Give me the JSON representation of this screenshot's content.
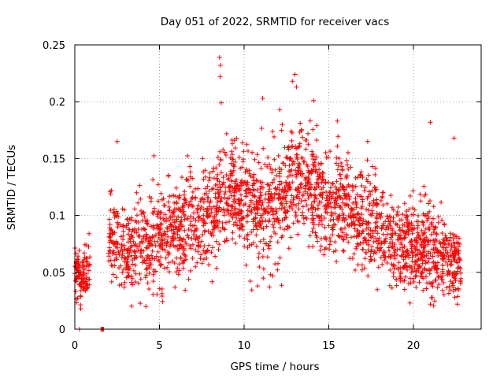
{
  "chart_data": {
    "type": "scatter",
    "title": "Day 051 of 2022, SRMTID for receiver vacs",
    "xlabel": "GPS time / hours",
    "ylabel": "SRMTID / TECUs",
    "xlim": [
      0,
      24
    ],
    "ylim": [
      0,
      0.25
    ],
    "x_ticks": [
      0,
      5,
      10,
      15,
      20
    ],
    "x_tick_labels": [
      "0",
      "5",
      "10",
      "15",
      "20"
    ],
    "y_ticks": [
      0,
      0.05,
      0.1,
      0.15,
      0.2,
      0.25
    ],
    "y_tick_labels": [
      "0",
      "0.05",
      "0.1",
      "0.15",
      "0.2",
      "0.25"
    ],
    "grid": true,
    "marker": "plus",
    "series_color": "#ff0000",
    "envelope": {
      "description": "approximate trend of point cloud (hours, TECU mean, TECU spread)",
      "hours": [
        0.0,
        1.0,
        2.0,
        3.0,
        4.0,
        5.0,
        6.0,
        7.0,
        8.0,
        9.0,
        10.0,
        11.0,
        12.0,
        13.0,
        14.0,
        15.0,
        16.0,
        17.0,
        18.0,
        19.0,
        20.0,
        21.0,
        22.0,
        22.8
      ],
      "mean": [
        0.05,
        0.052,
        0.085,
        0.068,
        0.078,
        0.08,
        0.09,
        0.095,
        0.1,
        0.12,
        0.115,
        0.105,
        0.11,
        0.135,
        0.125,
        0.11,
        0.108,
        0.095,
        0.085,
        0.078,
        0.072,
        0.068,
        0.06,
        0.058
      ],
      "spread": [
        0.014,
        0.015,
        0.022,
        0.02,
        0.024,
        0.025,
        0.026,
        0.027,
        0.028,
        0.028,
        0.028,
        0.028,
        0.03,
        0.032,
        0.03,
        0.026,
        0.026,
        0.024,
        0.024,
        0.022,
        0.022,
        0.024,
        0.02,
        0.016
      ]
    },
    "gaps_hours": [
      [
        0.9,
        2.0
      ]
    ],
    "highlight_points": [
      {
        "x": 8.55,
        "y": 0.239
      },
      {
        "x": 8.6,
        "y": 0.232
      },
      {
        "x": 8.58,
        "y": 0.222
      },
      {
        "x": 8.65,
        "y": 0.199
      },
      {
        "x": 13.0,
        "y": 0.224
      },
      {
        "x": 12.85,
        "y": 0.218
      },
      {
        "x": 13.1,
        "y": 0.213
      },
      {
        "x": 14.1,
        "y": 0.201
      },
      {
        "x": 11.1,
        "y": 0.203
      },
      {
        "x": 2.5,
        "y": 0.165
      },
      {
        "x": 17.3,
        "y": 0.165
      },
      {
        "x": 21.0,
        "y": 0.182
      },
      {
        "x": 22.4,
        "y": 0.168
      },
      {
        "x": 15.5,
        "y": 0.183
      },
      {
        "x": 12.1,
        "y": 0.193
      },
      {
        "x": 4.2,
        "y": 0.02
      },
      {
        "x": 21.0,
        "y": 0.022
      },
      {
        "x": 22.6,
        "y": 0.022
      },
      {
        "x": 0.35,
        "y": 0.018
      },
      {
        "x": 10.8,
        "y": 0.038
      }
    ],
    "zero_points": [
      {
        "x": 0.28,
        "y": 0.0
      },
      {
        "x": 1.55,
        "y": 0.0
      },
      {
        "x": 1.6,
        "y": 0.0
      },
      {
        "x": 1.65,
        "y": 0.0
      },
      {
        "x": 1.7,
        "y": 0.0
      }
    ]
  }
}
